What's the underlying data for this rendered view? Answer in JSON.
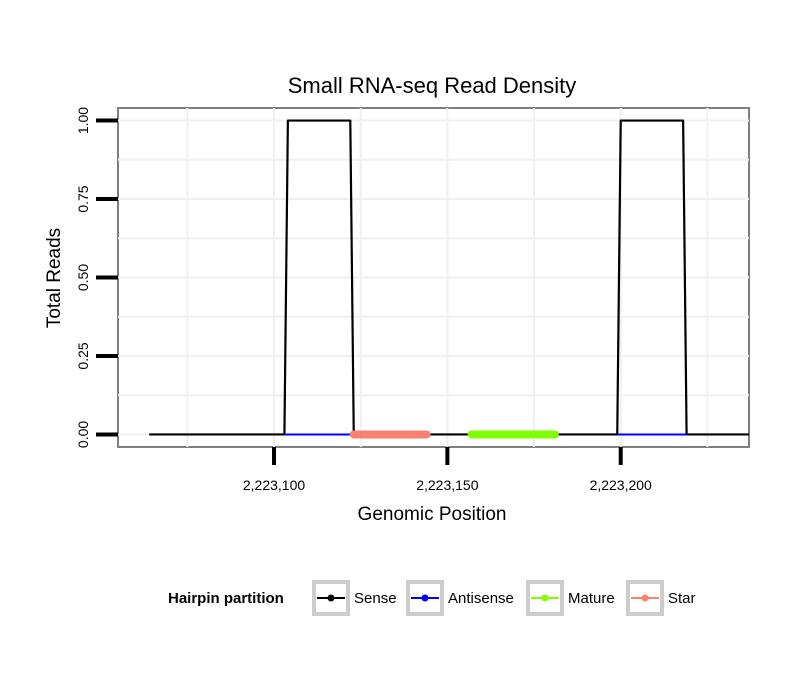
{
  "chart_data": {
    "type": "line",
    "title": "Small RNA-seq Read Density",
    "xlabel": "Genomic Position",
    "ylabel": "Total Reads",
    "xlim": [
      2223055,
      2223237
    ],
    "ylim": [
      -0.04,
      1.04
    ],
    "x_ticks": [
      2223100,
      2223150,
      2223200
    ],
    "x_tick_labels": [
      "2,223,100",
      "2,223,150",
      "2,223,200"
    ],
    "y_ticks": [
      0,
      0.25,
      0.5,
      0.75,
      1.0
    ],
    "y_tick_labels": [
      "0.00",
      "0.25",
      "0.50",
      "0.75",
      "1.00"
    ],
    "grid": true,
    "legend_position": "bottom",
    "legend_title": "Hairpin partition",
    "colors": {
      "Sense": "#000000",
      "Antisense": "#0000ff",
      "Mature": "#7fff00",
      "Star": "#fa8072"
    },
    "series": [
      {
        "name": "Sense",
        "color": "#000000",
        "x": [
          2223064,
          2223103,
          2223104,
          2223122,
          2223123,
          2223199,
          2223200,
          2223218,
          2223219,
          2223237
        ],
        "y": [
          0,
          0,
          1,
          1,
          0,
          0,
          1,
          1,
          0,
          0
        ]
      },
      {
        "name": "Antisense",
        "color": "#0000ff",
        "x": [
          2223103,
          2223123,
          2223199,
          2223219
        ],
        "y": [
          0,
          0,
          0,
          0
        ],
        "segments": [
          [
            2223103,
            2223123
          ],
          [
            2223199,
            2223219
          ]
        ]
      },
      {
        "name": "Mature",
        "color": "#7fff00",
        "x": [
          2223157,
          2223181
        ],
        "y": [
          0,
          0
        ]
      },
      {
        "name": "Star",
        "color": "#fa8072",
        "x": [
          2223123,
          2223144
        ],
        "y": [
          0,
          0
        ]
      }
    ]
  }
}
